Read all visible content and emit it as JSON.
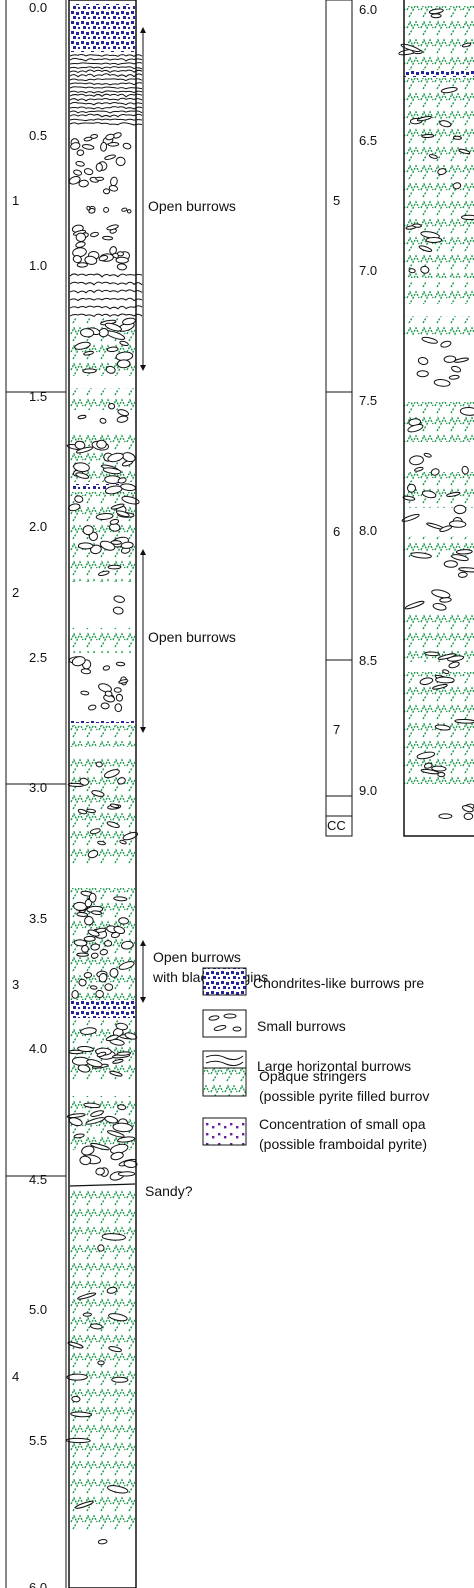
{
  "column_left": {
    "depth_ticks": [
      "0.0",
      "0.5",
      "1.0",
      "1.5",
      "2.0",
      "2.5",
      "3.0",
      "3.5",
      "4.0",
      "4.5",
      "5.0",
      "5.5",
      "6.0"
    ],
    "sections": [
      "1",
      "2",
      "3",
      "4"
    ],
    "annotations": [
      "Open burrows",
      "Open burrows",
      "Open burrows\nwith black margins",
      "Sandy?"
    ]
  },
  "column_right": {
    "depth_ticks": [
      "6.0",
      "6.5",
      "7.0",
      "7.5",
      "8.0",
      "8.5",
      "9.0"
    ],
    "sections": [
      "5",
      "6",
      "7",
      "CC"
    ]
  },
  "legend": {
    "items": [
      {
        "text": "Chondrites-like burrows pre",
        "symbol": "chondrites"
      },
      {
        "text": "Small burrows",
        "symbol": "small"
      },
      {
        "text": "Large horizontal burrows",
        "symbol": "large"
      },
      {
        "text": "Opaque stringers\n(possible pyrite filled burrov",
        "symbol": "stringers"
      },
      {
        "text": "Concentration of small opa\n(possible framboidal pyrite)",
        "symbol": "framboid"
      }
    ]
  },
  "colors": {
    "chondrites": "#23239a",
    "stringers": "#1c9a4e",
    "framboid": "#6b1fa0",
    "outline": "#111111"
  }
}
